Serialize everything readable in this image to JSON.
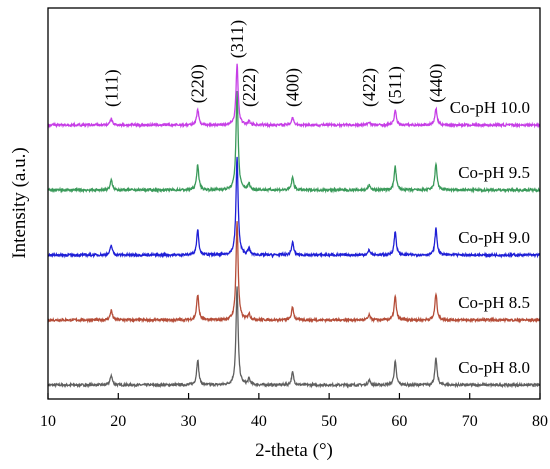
{
  "chart_data": {
    "type": "line",
    "xlabel": "2-theta (°)",
    "ylabel": "Intensity (a.u.)",
    "xlim": [
      10,
      80
    ],
    "xticks": [
      10,
      20,
      30,
      40,
      50,
      60,
      70,
      80
    ],
    "grid": false,
    "legend": "none",
    "peaks": [
      {
        "label": "(111)",
        "x": 19.0,
        "rel": 0.1
      },
      {
        "label": "(220)",
        "x": 31.3,
        "rel": 0.26
      },
      {
        "label": "(311)",
        "x": 36.9,
        "rel": 1.0
      },
      {
        "label": "(222)",
        "x": 38.6,
        "rel": 0.06
      },
      {
        "label": "(400)",
        "x": 44.8,
        "rel": 0.13
      },
      {
        "label": "(422)",
        "x": 55.7,
        "rel": 0.05
      },
      {
        "label": "(511)",
        "x": 59.4,
        "rel": 0.24
      },
      {
        "label": "(440)",
        "x": 65.2,
        "rel": 0.27
      }
    ],
    "series": [
      {
        "name": "Co-pH 8.0",
        "color": "#5f5f5f",
        "offset": 0,
        "scale": 1.0
      },
      {
        "name": "Co-pH 8.5",
        "color": "#b54d38",
        "offset": 1,
        "scale": 1.0
      },
      {
        "name": "Co-pH 9.0",
        "color": "#1f1fd6",
        "offset": 2,
        "scale": 1.0
      },
      {
        "name": "Co-pH 9.5",
        "color": "#3a9a5a",
        "offset": 3,
        "scale": 1.0
      },
      {
        "name": "Co-pH 10.0",
        "color": "#c63ee6",
        "offset": 4,
        "scale": 0.62
      }
    ]
  }
}
